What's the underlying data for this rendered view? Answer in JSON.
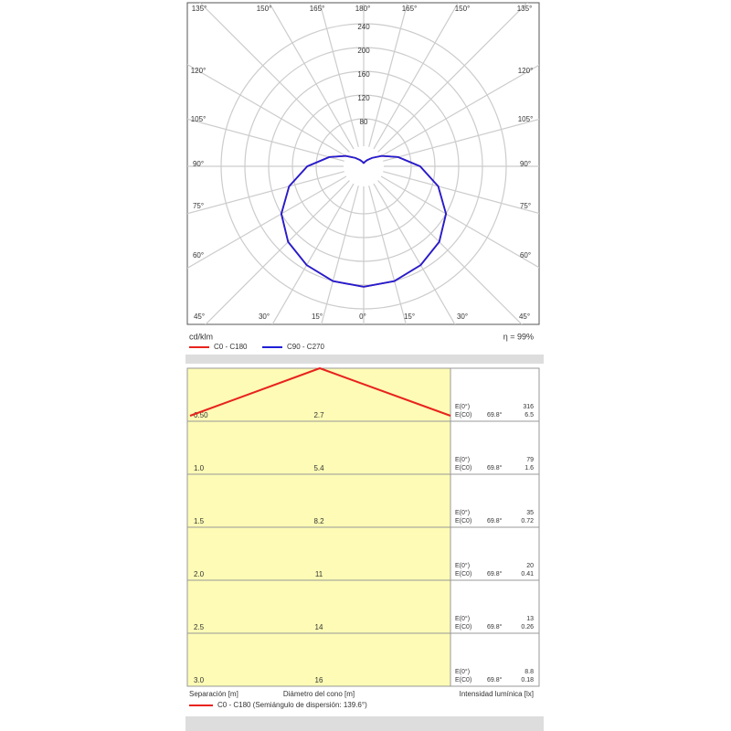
{
  "chart_data": {
    "type": "polar",
    "unit": "cd/klm",
    "efficiency": "η = 99%",
    "rlim": [
      0,
      240
    ],
    "rticks": [
      80,
      120,
      160,
      200,
      240
    ],
    "angles": [
      0,
      15,
      30,
      45,
      60,
      75,
      90,
      105,
      120,
      135,
      150,
      165,
      180
    ],
    "angle_labels": {
      "top": [
        "135°",
        "150°",
        "165°",
        "180°",
        "165°",
        "150°",
        "135°"
      ],
      "left": [
        "120°",
        "105°",
        "90°",
        "75°",
        "60°"
      ],
      "right": [
        "120°",
        "105°",
        "90°",
        "75°",
        "60°"
      ],
      "bottom": [
        "45°",
        "30°",
        "15°",
        "0°",
        "15°",
        "30°",
        "45°"
      ]
    },
    "series": [
      {
        "name": "C0 - C180",
        "color": "#e8231e",
        "values": [
          203,
          200,
          192,
          180,
          160,
          130,
          95,
          60,
          35,
          20,
          12,
          8,
          5
        ]
      },
      {
        "name": "C90 - C270",
        "color": "#1f1fd6",
        "values": [
          203,
          200,
          192,
          180,
          160,
          130,
          95,
          60,
          35,
          20,
          12,
          8,
          5
        ]
      }
    ]
  },
  "cone": {
    "rows": [
      {
        "height": "0.50",
        "diameter": "2.7",
        "e0_label": "E(0°)",
        "e0": "316",
        "ec0_label": "E(C0)",
        "angle": "69.8°",
        "ec0": "6.5"
      },
      {
        "height": "1.0",
        "diameter": "5.4",
        "e0_label": "E(0°)",
        "e0": "79",
        "ec0_label": "E(C0)",
        "angle": "69.8°",
        "ec0": "1.6"
      },
      {
        "height": "1.5",
        "diameter": "8.2",
        "e0_label": "E(0°)",
        "e0": "35",
        "ec0_label": "E(C0)",
        "angle": "69.8°",
        "ec0": "0.72"
      },
      {
        "height": "2.0",
        "diameter": "11",
        "e0_label": "E(0°)",
        "e0": "20",
        "ec0_label": "E(C0)",
        "angle": "69.8°",
        "ec0": "0.41"
      },
      {
        "height": "2.5",
        "diameter": "14",
        "e0_label": "E(0°)",
        "e0": "13",
        "ec0_label": "E(C0)",
        "angle": "69.8°",
        "ec0": "0.26"
      },
      {
        "height": "3.0",
        "diameter": "16",
        "e0_label": "E(0°)",
        "e0": "8.8",
        "ec0_label": "E(C0)",
        "angle": "69.8°",
        "ec0": "0.18"
      }
    ],
    "footer": {
      "separation": "Separación [m]",
      "diameter": "Diámetro del cono [m]",
      "illuminance": "Intensidad lumínica [lx]"
    },
    "legend": "C0 - C180 (Semiángulo de dispersión: 139.6°)"
  }
}
